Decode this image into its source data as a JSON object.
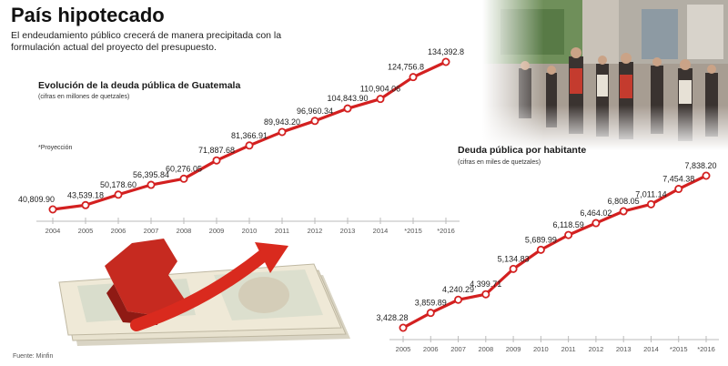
{
  "header": {
    "title": "País hipotecado",
    "subtitle": "El endeudamiento público crecerá de manera precipitada con la formulación actual del proyecto del presupuesto."
  },
  "source": "Fuente: Minfin",
  "colors": {
    "line": "#d32020",
    "marker_fill": "#ffffff",
    "axis": "#bbbbbb",
    "text": "#222222"
  },
  "chart_data": [
    {
      "type": "line",
      "title": "Evolución de la deuda pública de Guatemala",
      "subtitle": "(cifras en millones de quetzales)",
      "note": "*Proyección",
      "categories": [
        "2004",
        "2005",
        "2006",
        "2007",
        "2008",
        "2009",
        "2010",
        "2011",
        "2012",
        "2013",
        "2014",
        "*2015",
        "*2016"
      ],
      "values": [
        40809.9,
        43539.18,
        50178.6,
        56395.84,
        60276.05,
        71887.68,
        81366.91,
        89943.2,
        96960.34,
        104843.9,
        110904.06,
        124756.8,
        134392.8
      ],
      "labels": [
        "40,809.90",
        "43,539.18",
        "50,178.60",
        "56,395.84",
        "60,276.05",
        "71,887.68",
        "81,366.91",
        "89,943.20",
        "96,960.34",
        "104,843.90",
        "110,904.06",
        "124,756.8",
        "134,392.8"
      ]
    },
    {
      "type": "line",
      "title": "Deuda pública por habitante",
      "subtitle": "(cifras en miles de quetzales)",
      "categories": [
        "2005",
        "2006",
        "2007",
        "2008",
        "2009",
        "2010",
        "2011",
        "2012",
        "2013",
        "2014",
        "*2015",
        "*2016"
      ],
      "values": [
        3428.28,
        3859.89,
        4240.29,
        4399.71,
        5134.83,
        5689.99,
        6118.59,
        6464.02,
        6808.05,
        7011.14,
        7454.38,
        7838.2
      ],
      "labels": [
        "3,428.28",
        "3,859.89",
        "4,240.29",
        "4,399.71",
        "5,134.83",
        "5,689.99",
        "6,118.59",
        "6,464.02",
        "6,808.05",
        "7,011.14",
        "7,454.38",
        "7,838.20"
      ]
    }
  ]
}
